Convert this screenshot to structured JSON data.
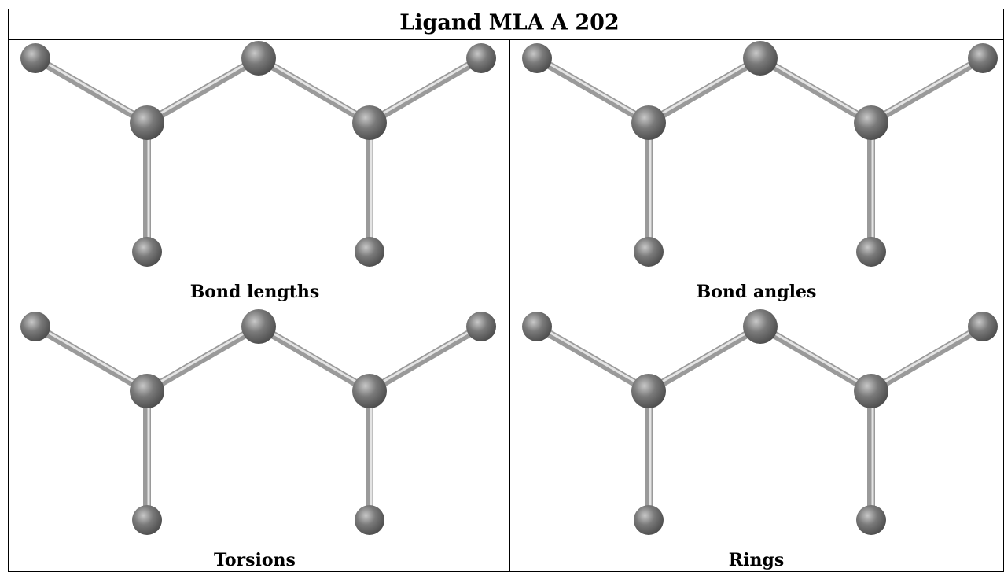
{
  "header": {
    "title": "Ligand MLA A 202"
  },
  "panels": [
    {
      "label": "Bond lengths"
    },
    {
      "label": "Bond angles"
    },
    {
      "label": "Torsions"
    },
    {
      "label": "Rings"
    }
  ]
}
